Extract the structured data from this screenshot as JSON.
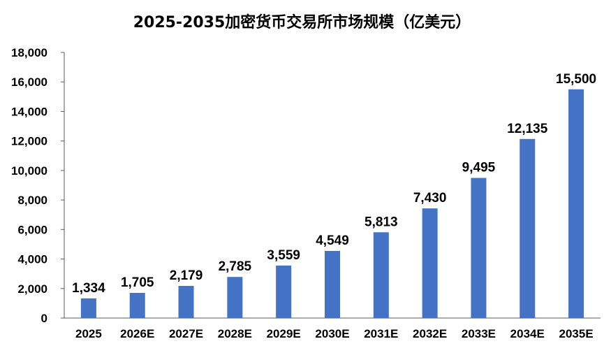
{
  "chart_data": {
    "type": "bar",
    "title": "2025-2035加密货币交易所市场规模（亿美元）",
    "xlabel": "",
    "ylabel": "",
    "categories": [
      "2025",
      "2026E",
      "2027E",
      "2028E",
      "2029E",
      "2030E",
      "2031E",
      "2032E",
      "2033E",
      "2034E",
      "2035E"
    ],
    "values": [
      1334,
      1705,
      2179,
      2785,
      3559,
      4549,
      5813,
      7430,
      9495,
      12135,
      15500
    ],
    "value_labels": [
      "1,334",
      "1,705",
      "2,179",
      "2,785",
      "3,559",
      "4,549",
      "5,813",
      "7,430",
      "9,495",
      "12,135",
      "15,500"
    ],
    "ylim": [
      0,
      18000
    ],
    "yticks": [
      0,
      2000,
      4000,
      6000,
      8000,
      10000,
      12000,
      14000,
      16000,
      18000
    ],
    "ytick_labels": [
      "0",
      "2,000",
      "4,000",
      "6,000",
      "8,000",
      "10,000",
      "12,000",
      "14,000",
      "16,000",
      "18,000"
    ],
    "grid": false,
    "legend": "none",
    "bar_color": "#4472C4"
  }
}
